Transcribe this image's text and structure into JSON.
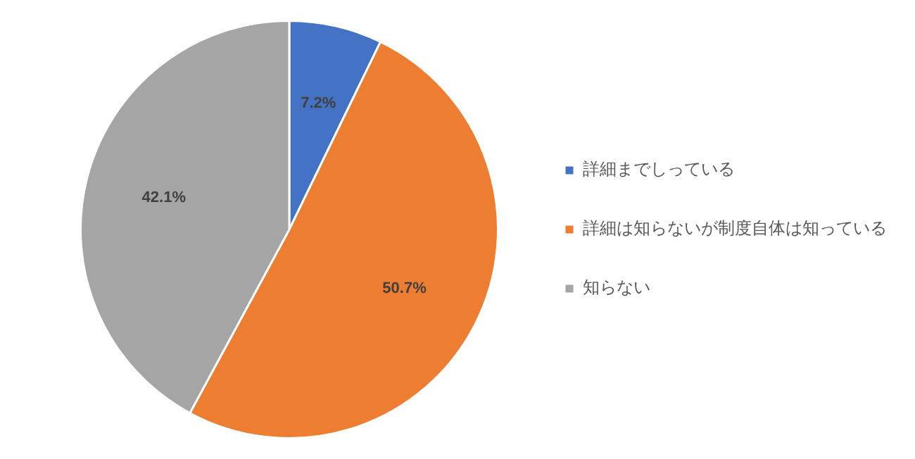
{
  "chart_data": {
    "type": "pie",
    "categories": [
      "詳細までしっている",
      "詳細は知らないが制度自体は知っている",
      "知らない"
    ],
    "values": [
      7.2,
      50.7,
      42.1
    ],
    "colors": [
      "#4472c4",
      "#ed7d31",
      "#a5a5a5"
    ],
    "value_labels": [
      "7.2%",
      "50.7%",
      "42.1%"
    ],
    "legend": "right"
  }
}
